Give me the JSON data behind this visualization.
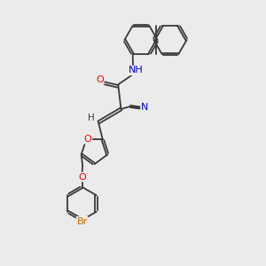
{
  "bg_color": "#ebebeb",
  "bond_color": "#3a3a3a",
  "atom_colors": {
    "O": "#ff0000",
    "N": "#0000cc",
    "Br": "#cc6600",
    "C": "#3a3a3a"
  },
  "font_size": 7.5,
  "line_width": 1.3
}
